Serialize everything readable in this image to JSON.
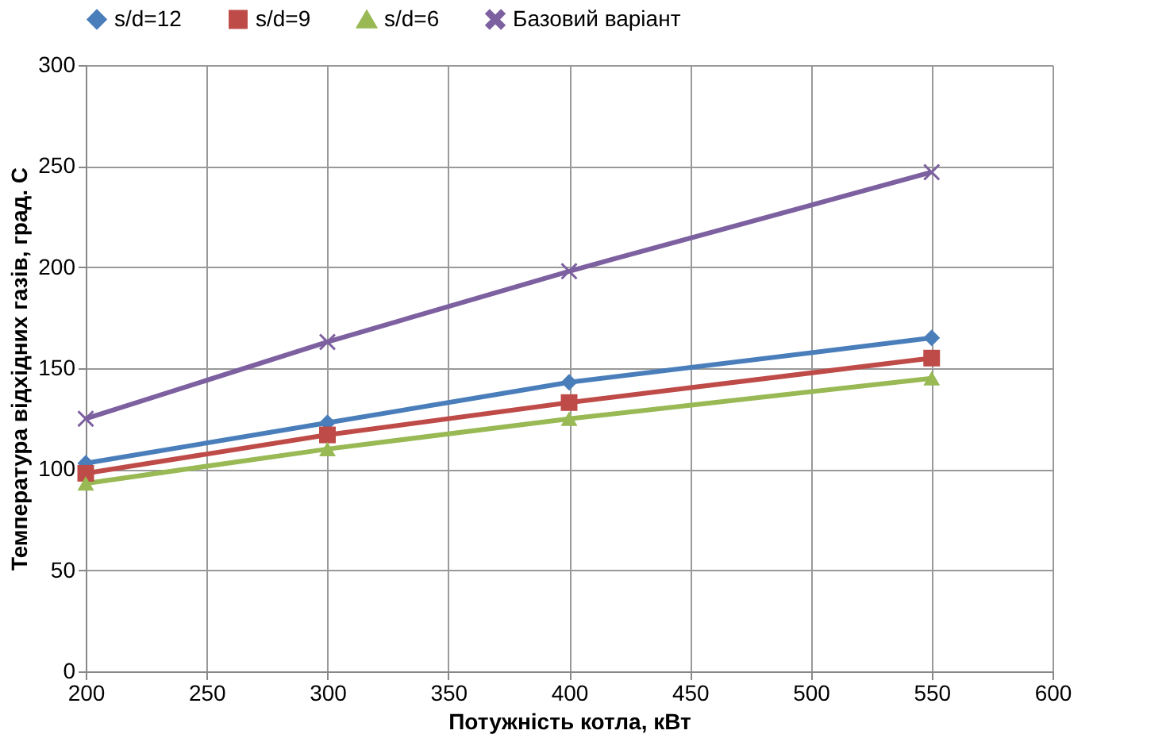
{
  "chart_data": {
    "type": "line",
    "xlabel": "Потужність котла, кВт",
    "ylabel": "Температура відхідних газів, град. С",
    "x": [
      200,
      300,
      400,
      550
    ],
    "series": [
      {
        "name": "s/d=12",
        "color": "#4a7ebb",
        "marker": "diamond",
        "values": [
          103,
          123,
          143,
          165
        ]
      },
      {
        "name": "s/d=9",
        "color": "#be4b48",
        "marker": "square",
        "values": [
          98,
          117,
          133,
          155
        ]
      },
      {
        "name": "s/d=6",
        "color": "#98b954",
        "marker": "triangle",
        "values": [
          93,
          110,
          125,
          145
        ]
      },
      {
        "name": "Базовий варіант",
        "color": "#7d60a0",
        "marker": "cross",
        "values": [
          125,
          163,
          198,
          247
        ]
      }
    ],
    "xlim": [
      200,
      600
    ],
    "xticks": [
      200,
      250,
      300,
      350,
      400,
      450,
      500,
      550,
      600
    ],
    "ylim": [
      0,
      300
    ],
    "yticks": [
      0,
      50,
      100,
      150,
      200,
      250,
      300
    ],
    "grid": true,
    "legend": "top"
  }
}
